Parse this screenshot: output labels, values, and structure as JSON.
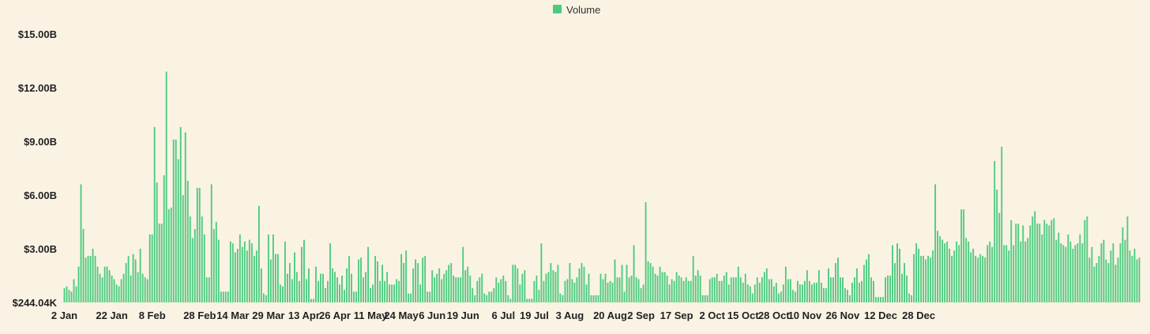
{
  "chart_data": {
    "type": "bar",
    "legend": {
      "label": "Volume",
      "color": "#4cca7f",
      "position": "top-center"
    },
    "bar_color": "#4cca7f",
    "background": "#faf3e3",
    "ylim": [
      0,
      15000000000
    ],
    "yticks": [
      {
        "value": 244040,
        "label": "$244.04K"
      },
      {
        "value": 3000000000,
        "label": "$3.00B"
      },
      {
        "value": 6000000000,
        "label": "$6.00B"
      },
      {
        "value": 9000000000,
        "label": "$9.00B"
      },
      {
        "value": 12000000000,
        "label": "$12.00B"
      },
      {
        "value": 15000000000,
        "label": "$15.00B"
      }
    ],
    "xticks": [
      {
        "index": 0,
        "label": "2 Jan"
      },
      {
        "index": 20,
        "label": "22 Jan"
      },
      {
        "index": 37,
        "label": "8 Feb"
      },
      {
        "index": 57,
        "label": "28 Feb"
      },
      {
        "index": 71,
        "label": "14 Mar"
      },
      {
        "index": 86,
        "label": "29 Mar"
      },
      {
        "index": 101,
        "label": "13 Apr"
      },
      {
        "index": 114,
        "label": "26 Apr"
      },
      {
        "index": 129,
        "label": "11 May"
      },
      {
        "index": 142,
        "label": "24 May"
      },
      {
        "index": 155,
        "label": "6 Jun"
      },
      {
        "index": 168,
        "label": "19 Jun"
      },
      {
        "index": 185,
        "label": "6 Jul"
      },
      {
        "index": 198,
        "label": "19 Jul"
      },
      {
        "index": 213,
        "label": "3 Aug"
      },
      {
        "index": 230,
        "label": "20 Aug"
      },
      {
        "index": 243,
        "label": "2 Sep"
      },
      {
        "index": 258,
        "label": "17 Sep"
      },
      {
        "index": 273,
        "label": "2 Oct"
      },
      {
        "index": 286,
        "label": "15 Oct"
      },
      {
        "index": 299,
        "label": "28 Oct"
      },
      {
        "index": 312,
        "label": "10 Nov"
      },
      {
        "index": 328,
        "label": "26 Nov"
      },
      {
        "index": 344,
        "label": "12 Dec"
      },
      {
        "index": 360,
        "label": "28 Dec"
      }
    ],
    "values_billions": [
      0.8,
      0.9,
      0.7,
      0.6,
      1.3,
      0.9,
      2.0,
      6.6,
      4.1,
      2.5,
      2.6,
      2.6,
      3.0,
      2.6,
      2.0,
      1.6,
      1.4,
      2.0,
      2.0,
      1.8,
      1.5,
      1.3,
      1.0,
      0.9,
      1.3,
      1.6,
      2.2,
      2.6,
      1.5,
      2.7,
      2.4,
      1.7,
      3.0,
      1.6,
      1.4,
      1.3,
      3.8,
      3.8,
      9.8,
      6.7,
      4.4,
      4.4,
      7.1,
      12.9,
      5.2,
      5.3,
      9.1,
      9.1,
      8.0,
      9.8,
      6.0,
      9.5,
      6.8,
      4.8,
      3.6,
      4.1,
      6.4,
      6.4,
      4.8,
      3.8,
      1.4,
      1.4,
      6.6,
      4.1,
      4.5,
      3.5,
      0.6,
      0.6,
      0.6,
      0.6,
      3.4,
      3.3,
      2.8,
      3.0,
      3.8,
      3.1,
      3.4,
      2.9,
      3.5,
      3.3,
      2.6,
      2.9,
      5.4,
      1.9,
      0.5,
      0.4,
      3.8,
      2.4,
      3.8,
      2.7,
      2.7,
      1.0,
      0.9,
      3.4,
      1.6,
      2.2,
      1.3,
      2.8,
      1.7,
      1.2,
      3.1,
      3.5,
      1.3,
      1.9,
      0.2,
      0.2,
      2.0,
      1.2,
      1.6,
      1.6,
      0.8,
      1.2,
      3.3,
      1.9,
      1.7,
      1.4,
      1.0,
      1.5,
      0.7,
      1.9,
      2.6,
      1.6,
      0.6,
      0.6,
      2.4,
      2.5,
      1.4,
      1.7,
      3.1,
      0.8,
      1.0,
      2.6,
      2.3,
      1.2,
      2.1,
      1.2,
      1.7,
      1.0,
      1.0,
      1.0,
      1.3,
      1.2,
      2.7,
      2.2,
      2.9,
      0.5,
      0.5,
      1.9,
      2.4,
      2.2,
      1.0,
      2.5,
      2.6,
      0.6,
      0.6,
      1.8,
      1.4,
      1.6,
      1.9,
      1.3,
      1.6,
      1.8,
      2.1,
      2.2,
      1.5,
      1.4,
      1.4,
      1.4,
      3.1,
      1.8,
      2.0,
      1.5,
      0.8,
      0.4,
      1.2,
      1.4,
      1.6,
      0.5,
      0.4,
      0.6,
      0.6,
      0.8,
      1.4,
      1.1,
      1.3,
      1.5,
      1.2,
      0.4,
      0.2,
      2.1,
      2.1,
      1.9,
      1.0,
      1.6,
      1.8,
      0.2,
      0.2,
      0.2,
      1.2,
      1.5,
      0.7,
      3.3,
      1.2,
      1.6,
      1.7,
      2.2,
      1.8,
      1.7,
      2.1,
      0.5,
      0.4,
      1.2,
      1.3,
      2.2,
      1.3,
      1.1,
      1.4,
      1.9,
      2.2,
      2.0,
      1.0,
      1.6,
      0.4,
      0.4,
      0.4,
      0.4,
      1.6,
      1.3,
      1.6,
      1.1,
      1.2,
      1.1,
      2.4,
      1.4,
      1.4,
      2.1,
      0.6,
      2.1,
      1.4,
      1.5,
      3.2,
      1.4,
      1.3,
      0.8,
      1.0,
      5.6,
      2.3,
      2.2,
      2.0,
      1.6,
      1.5,
      2.0,
      1.7,
      1.7,
      1.5,
      1.0,
      1.3,
      1.2,
      1.7,
      1.5,
      1.4,
      1.2,
      1.4,
      1.2,
      1.2,
      2.6,
      1.5,
      1.8,
      1.5,
      0.4,
      0.4,
      0.4,
      1.3,
      1.4,
      1.4,
      1.6,
      1.2,
      1.2,
      1.5,
      1.7,
      1.0,
      1.4,
      1.4,
      1.4,
      2.0,
      1.4,
      1.1,
      1.6,
      1.0,
      0.9,
      0.5,
      1.0,
      1.4,
      1.1,
      1.4,
      1.7,
      1.9,
      1.3,
      1.3,
      0.9,
      1.1,
      0.5,
      0.6,
      1.0,
      2.0,
      1.3,
      1.3,
      0.7,
      0.6,
      1.2,
      1.0,
      1.0,
      1.2,
      1.8,
      1.2,
      1.0,
      1.1,
      1.1,
      1.8,
      1.1,
      0.8,
      0.8,
      1.9,
      1.4,
      1.4,
      2.2,
      2.5,
      1.4,
      1.4,
      0.8,
      0.7,
      0.4,
      1.1,
      1.4,
      1.9,
      1.1,
      1.2,
      2.1,
      2.4,
      2.7,
      1.4,
      1.2,
      0.3,
      0.3,
      0.3,
      0.3,
      1.4,
      1.5,
      1.5,
      3.2,
      2.2,
      3.3,
      3.0,
      1.6,
      2.2,
      1.5,
      0.5,
      0.4,
      2.7,
      3.3,
      3.0,
      2.6,
      2.6,
      2.4,
      2.6,
      2.5,
      2.9,
      6.6,
      4.0,
      3.7,
      3.5,
      3.3,
      3.4,
      3.0,
      2.6,
      2.9,
      3.4,
      3.2,
      5.2,
      5.2,
      3.6,
      3.4,
      2.8,
      3.0,
      2.6,
      2.5,
      2.7,
      2.6,
      2.5,
      3.2,
      3.4,
      3.1,
      7.9,
      6.3,
      5.0,
      8.7,
      3.2,
      3.2,
      2.9,
      4.6,
      3.2,
      4.4,
      4.4,
      3.4,
      4.3,
      3.4,
      3.6,
      4.3,
      4.8,
      5.1,
      4.4,
      4.4,
      3.8,
      4.6,
      4.4,
      4.3,
      4.6,
      4.7,
      3.5,
      3.9,
      3.3,
      3.2,
      3.1,
      3.8,
      3.4,
      3.0,
      3.2,
      3.3,
      3.8,
      3.3,
      4.6,
      4.8,
      2.5,
      3.1,
      2.0,
      2.2,
      2.6,
      3.3,
      3.5,
      2.4,
      2.2,
      2.9,
      3.3,
      2.1,
      2.5,
      3.3,
      4.2,
      3.5,
      4.8,
      2.9,
      2.6,
      3.0,
      2.4,
      2.5
    ]
  }
}
